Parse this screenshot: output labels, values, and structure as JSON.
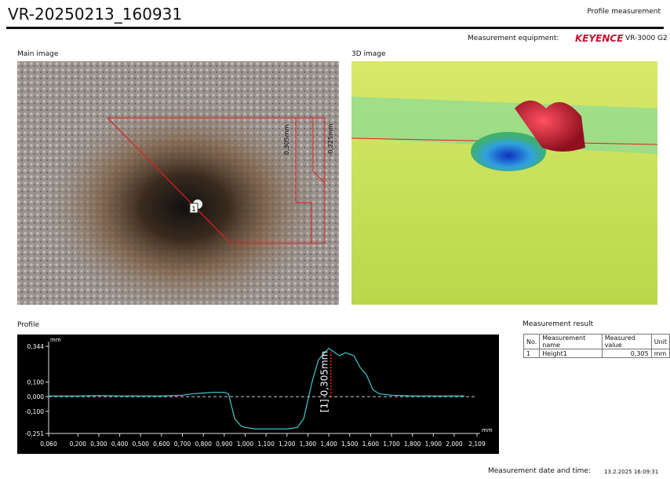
{
  "header": {
    "title": "VR-20250213_160931",
    "report_type": "Profile measurement",
    "equipment_label": "Measurement equipment:",
    "brand": "KEYENCE",
    "model": "VR-3000 G2"
  },
  "main_image": {
    "title": "Main image",
    "labels": [
      "0,305mm",
      "-0,225mm",
      "1"
    ]
  },
  "image_3d": {
    "title": "3D image"
  },
  "profile_title": "Profile",
  "chart_data": {
    "type": "line",
    "x_unit": "mm",
    "y_unit": "mm",
    "xlim": [
      0.06,
      2.109
    ],
    "xticks": [
      {
        "value": 0.06,
        "label": "0,060"
      },
      {
        "value": 0.2,
        "label": "0,200"
      },
      {
        "value": 0.3,
        "label": "0,300"
      },
      {
        "value": 0.4,
        "label": "0,400"
      },
      {
        "value": 0.5,
        "label": "0,500"
      },
      {
        "value": 0.6,
        "label": "0,600"
      },
      {
        "value": 0.7,
        "label": "0,700"
      },
      {
        "value": 0.8,
        "label": "0,800"
      },
      {
        "value": 0.9,
        "label": "0,900"
      },
      {
        "value": 1.0,
        "label": "1,000"
      },
      {
        "value": 1.1,
        "label": "1,100"
      },
      {
        "value": 1.2,
        "label": "1,200"
      },
      {
        "value": 1.3,
        "label": "1,300"
      },
      {
        "value": 1.4,
        "label": "1,400"
      },
      {
        "value": 1.5,
        "label": "1,500"
      },
      {
        "value": 1.6,
        "label": "1,600"
      },
      {
        "value": 1.7,
        "label": "1,700"
      },
      {
        "value": 1.8,
        "label": "1,800"
      },
      {
        "value": 1.9,
        "label": "1,900"
      },
      {
        "value": 2.0,
        "label": "2,000"
      },
      {
        "value": 2.109,
        "label": "2,109"
      }
    ],
    "ylim": [
      -0.251,
      0.344
    ],
    "yticks": [
      {
        "value": 0.344,
        "label": "0,344"
      },
      {
        "value": 0.1,
        "label": "0,100"
      },
      {
        "value": 0.0,
        "label": "0,000"
      },
      {
        "value": -0.1,
        "label": "-0,100"
      },
      {
        "value": -0.251,
        "label": "-0,251"
      }
    ],
    "series": [
      {
        "color": "#3fc8d0",
        "x": [
          0.06,
          0.2,
          0.3,
          0.4,
          0.5,
          0.6,
          0.7,
          0.75,
          0.8,
          0.85,
          0.9,
          0.92,
          0.95,
          0.98,
          1.0,
          1.05,
          1.1,
          1.15,
          1.2,
          1.25,
          1.28,
          1.32,
          1.35,
          1.38,
          1.4,
          1.42,
          1.45,
          1.48,
          1.52,
          1.55,
          1.58,
          1.61,
          1.64,
          1.7,
          1.8,
          1.9,
          2.0,
          2.05
        ],
        "values": [
          0.005,
          0.005,
          0.008,
          0.005,
          0.005,
          0.005,
          0.01,
          0.02,
          0.025,
          0.03,
          0.03,
          0.02,
          -0.15,
          -0.2,
          -0.21,
          -0.22,
          -0.22,
          -0.22,
          -0.22,
          -0.21,
          -0.15,
          0.1,
          0.25,
          0.3,
          0.33,
          0.31,
          0.28,
          0.3,
          0.28,
          0.2,
          0.15,
          0.05,
          0.02,
          0.01,
          0.005,
          0.005,
          0.005,
          0.005
        ]
      }
    ],
    "annotation": {
      "text": "[1] 0,305mm",
      "x": 1.41,
      "value": 0.305,
      "color": "#ff2020"
    }
  },
  "measurement_result": {
    "title": "Measurement result",
    "columns": [
      "No.",
      "Measurement name",
      "Measured value",
      "Unit"
    ],
    "rows": [
      [
        "1",
        "Height1",
        "0,305",
        "mm"
      ]
    ]
  },
  "footer": {
    "label": "Measurement date and time:",
    "value": "13.2.2025 16:09:31"
  }
}
